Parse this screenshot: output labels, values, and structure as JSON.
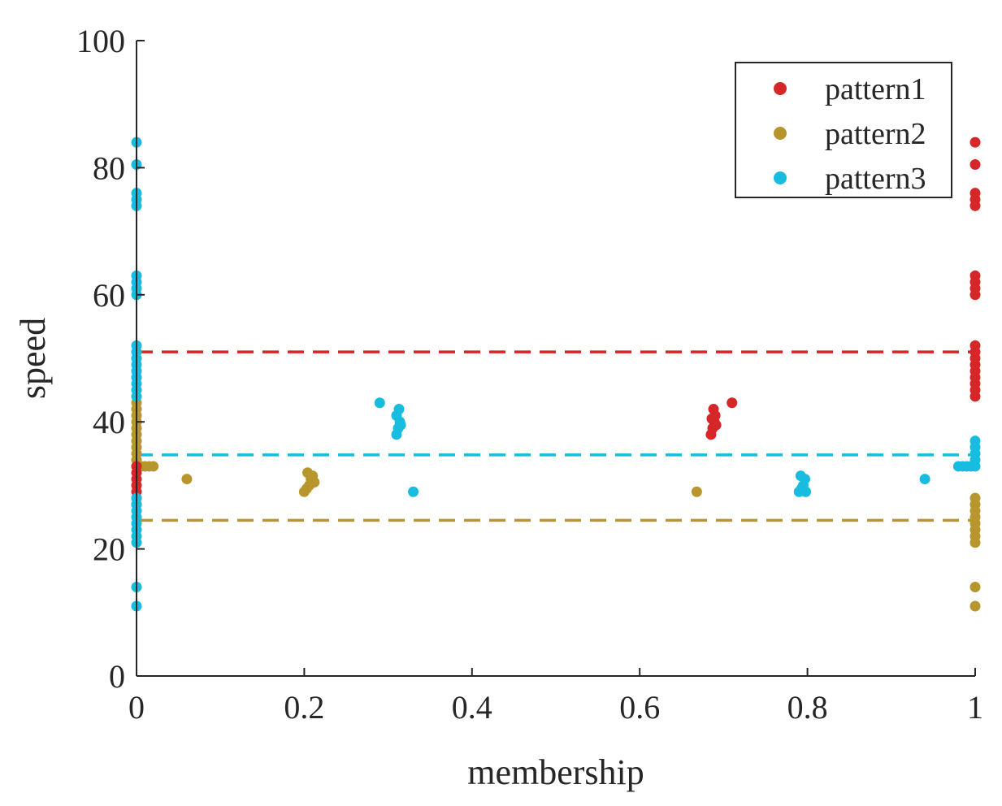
{
  "chart_data": {
    "type": "scatter",
    "xlabel": "membership",
    "ylabel": "speed",
    "xlim": [
      0,
      1
    ],
    "ylim": [
      0,
      100
    ],
    "xticks": [
      0,
      0.2,
      0.4,
      0.6,
      0.8,
      1
    ],
    "xtick_labels": [
      "0",
      "0.2",
      "0.4",
      "0.6",
      "0.8",
      "1"
    ],
    "yticks": [
      0,
      20,
      40,
      60,
      80,
      100
    ],
    "ytick_labels": [
      "0",
      "20",
      "40",
      "60",
      "80",
      "100"
    ],
    "grid": false,
    "legend_position": "top-right",
    "series": [
      {
        "name": "pattern1",
        "color": "#d62728",
        "mean_line": 51,
        "points": [
          [
            0,
            28
          ],
          [
            0,
            29
          ],
          [
            0,
            30
          ],
          [
            0,
            31
          ],
          [
            0,
            32
          ],
          [
            0,
            33
          ],
          [
            0,
            27
          ],
          [
            0.685,
            38
          ],
          [
            0.687,
            39
          ],
          [
            0.689,
            40
          ],
          [
            0.69,
            41
          ],
          [
            0.688,
            42
          ],
          [
            0.691,
            39.5
          ],
          [
            0.686,
            40.5
          ],
          [
            0.71,
            43
          ],
          [
            1,
            44
          ],
          [
            1,
            45
          ],
          [
            1,
            46
          ],
          [
            1,
            47
          ],
          [
            1,
            48
          ],
          [
            1,
            49
          ],
          [
            1,
            50
          ],
          [
            1,
            51
          ],
          [
            1,
            52
          ],
          [
            1,
            60
          ],
          [
            1,
            61
          ],
          [
            1,
            62
          ],
          [
            1,
            63
          ],
          [
            1,
            74
          ],
          [
            1,
            75
          ],
          [
            1,
            76
          ],
          [
            1,
            80.5
          ],
          [
            1,
            84
          ]
        ]
      },
      {
        "name": "pattern2",
        "color": "#b8962e",
        "mean_line": 24.5,
        "points": [
          [
            0,
            33
          ],
          [
            0,
            34
          ],
          [
            0,
            35
          ],
          [
            0,
            36
          ],
          [
            0,
            37
          ],
          [
            0,
            38
          ],
          [
            0,
            39
          ],
          [
            0,
            40
          ],
          [
            0,
            41
          ],
          [
            0,
            42
          ],
          [
            0,
            43
          ],
          [
            0.005,
            33
          ],
          [
            0.01,
            33
          ],
          [
            0.015,
            33
          ],
          [
            0.02,
            33
          ],
          [
            0.06,
            31
          ],
          [
            0.2,
            29
          ],
          [
            0.203,
            29.5
          ],
          [
            0.206,
            30
          ],
          [
            0.208,
            31
          ],
          [
            0.21,
            31.5
          ],
          [
            0.204,
            32
          ],
          [
            0.212,
            30.5
          ],
          [
            0.668,
            29
          ],
          [
            1,
            21
          ],
          [
            1,
            22
          ],
          [
            1,
            23
          ],
          [
            1,
            24
          ],
          [
            1,
            25
          ],
          [
            1,
            26
          ],
          [
            1,
            27
          ],
          [
            1,
            28
          ],
          [
            1,
            14
          ],
          [
            1,
            11
          ]
        ]
      },
      {
        "name": "pattern3",
        "color": "#17bcdf",
        "mean_line": 34.8,
        "points": [
          [
            0,
            11
          ],
          [
            0,
            14
          ],
          [
            0,
            21
          ],
          [
            0,
            22
          ],
          [
            0,
            23
          ],
          [
            0,
            24
          ],
          [
            0,
            25
          ],
          [
            0,
            26
          ],
          [
            0,
            27
          ],
          [
            0,
            28
          ],
          [
            0,
            44
          ],
          [
            0,
            45
          ],
          [
            0,
            46
          ],
          [
            0,
            47
          ],
          [
            0,
            48
          ],
          [
            0,
            49
          ],
          [
            0,
            50
          ],
          [
            0,
            51
          ],
          [
            0,
            52
          ],
          [
            0,
            60
          ],
          [
            0,
            61
          ],
          [
            0,
            62
          ],
          [
            0,
            63
          ],
          [
            0,
            74
          ],
          [
            0,
            75
          ],
          [
            0,
            76
          ],
          [
            0,
            80.5
          ],
          [
            0,
            84
          ],
          [
            0.29,
            43
          ],
          [
            0.31,
            38
          ],
          [
            0.312,
            39
          ],
          [
            0.314,
            40
          ],
          [
            0.31,
            41
          ],
          [
            0.313,
            42
          ],
          [
            0.315,
            39.5
          ],
          [
            0.33,
            29
          ],
          [
            0.79,
            29
          ],
          [
            0.793,
            29.5
          ],
          [
            0.795,
            30
          ],
          [
            0.797,
            31
          ],
          [
            0.792,
            31.5
          ],
          [
            0.798,
            29
          ],
          [
            0.94,
            31
          ],
          [
            0.98,
            33
          ],
          [
            0.985,
            33
          ],
          [
            0.99,
            33
          ],
          [
            0.995,
            33
          ],
          [
            1,
            33
          ],
          [
            1,
            34
          ],
          [
            1,
            35
          ],
          [
            1,
            36
          ],
          [
            1,
            37
          ]
        ]
      }
    ]
  }
}
